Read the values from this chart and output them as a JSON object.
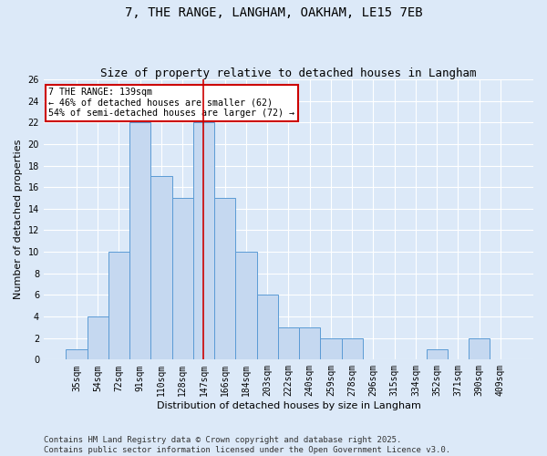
{
  "title": "7, THE RANGE, LANGHAM, OAKHAM, LE15 7EB",
  "subtitle": "Size of property relative to detached houses in Langham",
  "xlabel": "Distribution of detached houses by size in Langham",
  "ylabel": "Number of detached properties",
  "categories": [
    "35sqm",
    "54sqm",
    "72sqm",
    "91sqm",
    "110sqm",
    "128sqm",
    "147sqm",
    "166sqm",
    "184sqm",
    "203sqm",
    "222sqm",
    "240sqm",
    "259sqm",
    "278sqm",
    "296sqm",
    "315sqm",
    "334sqm",
    "352sqm",
    "371sqm",
    "390sqm",
    "409sqm"
  ],
  "values": [
    1,
    4,
    10,
    22,
    17,
    15,
    22,
    15,
    10,
    6,
    3,
    3,
    2,
    2,
    0,
    0,
    0,
    1,
    0,
    2,
    0
  ],
  "bar_color": "#c5d8f0",
  "bar_edge_color": "#5b9bd5",
  "ylim": [
    0,
    26
  ],
  "yticks": [
    0,
    2,
    4,
    6,
    8,
    10,
    12,
    14,
    16,
    18,
    20,
    22,
    24,
    26
  ],
  "vline_x_index": 6,
  "vline_color": "#cc0000",
  "annotation_line1": "7 THE RANGE: 139sqm",
  "annotation_line2": "← 46% of detached houses are smaller (62)",
  "annotation_line3": "54% of semi-detached houses are larger (72) →",
  "annotation_box_color": "#cc0000",
  "footer_text": "Contains HM Land Registry data © Crown copyright and database right 2025.\nContains public sector information licensed under the Open Government Licence v3.0.",
  "background_color": "#dce9f8",
  "plot_background_color": "#dce9f8",
  "grid_color": "#ffffff",
  "title_fontsize": 10,
  "subtitle_fontsize": 9,
  "axis_label_fontsize": 8,
  "tick_fontsize": 7,
  "footer_fontsize": 6.5
}
